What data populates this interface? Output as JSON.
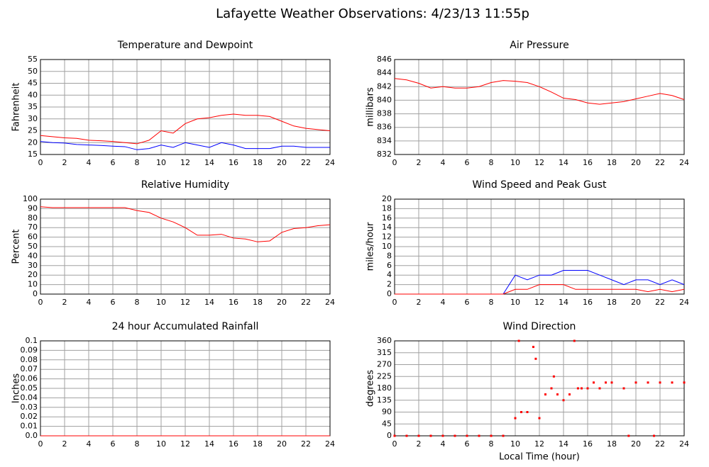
{
  "title": "Lafayette Weather Observations: 4/23/13 11:55p",
  "chart_data": [
    {
      "type": "line",
      "title": "Temperature and Dewpoint",
      "y_label": "Fahrenheit",
      "x": [
        0,
        1,
        2,
        3,
        4,
        5,
        6,
        7,
        8,
        9,
        10,
        11,
        12,
        13,
        14,
        15,
        16,
        17,
        18,
        19,
        20,
        21,
        22,
        23,
        24
      ],
      "series": [
        {
          "color": "#ff0000",
          "values": [
            23,
            22.5,
            22,
            21.8,
            21,
            20.8,
            20.5,
            20,
            19.5,
            21,
            25,
            24,
            28,
            30,
            30.5,
            31.5,
            32,
            31.5,
            31.5,
            31,
            29,
            27,
            26,
            25.5,
            25
          ]
        },
        {
          "color": "#0000ff",
          "values": [
            20.5,
            20,
            19.8,
            19.2,
            19,
            18.8,
            18.5,
            18.3,
            17,
            17.5,
            19,
            18,
            20,
            19,
            18,
            20,
            19,
            17.5,
            17.5,
            17.5,
            18.5,
            18.5,
            18,
            18,
            18
          ]
        }
      ],
      "xlim": [
        0,
        24
      ],
      "xticks": [
        0,
        2,
        4,
        6,
        8,
        10,
        12,
        14,
        16,
        18,
        20,
        22,
        24
      ],
      "ylim": [
        15,
        55
      ],
      "yticks": [
        15,
        20,
        25,
        30,
        35,
        40,
        45,
        50,
        55
      ],
      "grid": true
    },
    {
      "type": "line",
      "title": "Air Pressure",
      "y_label": "millibars",
      "x": [
        0,
        1,
        2,
        3,
        4,
        5,
        6,
        7,
        8,
        9,
        10,
        11,
        12,
        13,
        14,
        15,
        16,
        17,
        18,
        19,
        20,
        21,
        22,
        23,
        24
      ],
      "series": [
        {
          "color": "#ff0000",
          "values": [
            843.2,
            843,
            842.5,
            841.8,
            842,
            841.8,
            841.8,
            842,
            842.6,
            842.9,
            842.8,
            842.6,
            842,
            841.2,
            840.3,
            840.1,
            839.6,
            839.4,
            839.6,
            839.8,
            840.2,
            840.6,
            841,
            840.7,
            840.1
          ]
        }
      ],
      "xlim": [
        0,
        24
      ],
      "xticks": [
        0,
        2,
        4,
        6,
        8,
        10,
        12,
        14,
        16,
        18,
        20,
        22,
        24
      ],
      "ylim": [
        832,
        846
      ],
      "yticks": [
        832,
        834,
        836,
        838,
        840,
        842,
        844,
        846
      ],
      "grid": true
    },
    {
      "type": "line",
      "title": "Relative Humidity",
      "y_label": "Percent",
      "x": [
        0,
        1,
        2,
        3,
        4,
        5,
        6,
        7,
        8,
        9,
        10,
        11,
        12,
        13,
        14,
        15,
        16,
        17,
        18,
        19,
        20,
        21,
        22,
        23,
        24
      ],
      "series": [
        {
          "color": "#ff0000",
          "values": [
            92,
            91,
            91,
            91,
            91,
            91,
            91,
            91,
            88,
            86,
            80,
            76,
            70,
            62,
            62,
            63,
            59,
            58,
            55,
            56,
            65,
            69,
            70,
            72,
            73
          ]
        }
      ],
      "xlim": [
        0,
        24
      ],
      "xticks": [
        0,
        2,
        4,
        6,
        8,
        10,
        12,
        14,
        16,
        18,
        20,
        22,
        24
      ],
      "ylim": [
        0,
        100
      ],
      "yticks": [
        0,
        10,
        20,
        30,
        40,
        50,
        60,
        70,
        80,
        90,
        100
      ],
      "grid": true
    },
    {
      "type": "line",
      "title": "Wind Speed and Peak Gust",
      "y_label": "miles/hour",
      "x": [
        0,
        1,
        2,
        3,
        4,
        5,
        6,
        7,
        8,
        9,
        10,
        11,
        12,
        13,
        14,
        15,
        16,
        17,
        18,
        19,
        20,
        21,
        22,
        23,
        24
      ],
      "series": [
        {
          "color": "#0000ff",
          "values": [
            0,
            0,
            0,
            0,
            0,
            0,
            0,
            0,
            0,
            0,
            4,
            3,
            4,
            4,
            5,
            5,
            5,
            4,
            3,
            2,
            3,
            3,
            2,
            3,
            2
          ]
        },
        {
          "color": "#ff0000",
          "values": [
            0,
            0,
            0,
            0,
            0,
            0,
            0,
            0,
            0,
            0,
            1,
            1,
            2,
            2,
            2,
            1,
            1,
            1,
            1,
            1,
            1,
            0.5,
            1,
            0.5,
            1
          ]
        }
      ],
      "xlim": [
        0,
        24
      ],
      "xticks": [
        0,
        2,
        4,
        6,
        8,
        10,
        12,
        14,
        16,
        18,
        20,
        22,
        24
      ],
      "ylim": [
        0,
        20
      ],
      "yticks": [
        0,
        2,
        4,
        6,
        8,
        10,
        12,
        14,
        16,
        18,
        20
      ],
      "grid": true
    },
    {
      "type": "line",
      "title": "24 hour Accumulated Rainfall",
      "y_label": "Inches",
      "x": [
        0,
        24
      ],
      "series": [
        {
          "color": "#ff0000",
          "values": [
            0,
            0
          ]
        }
      ],
      "xlim": [
        0,
        24
      ],
      "xticks": [
        0,
        2,
        4,
        6,
        8,
        10,
        12,
        14,
        16,
        18,
        20,
        22,
        24
      ],
      "ylim": [
        0,
        0.1
      ],
      "yticks": [
        {
          "value": 0,
          "label": "0.0"
        },
        0.01,
        0.02,
        0.03,
        0.04,
        0.05,
        0.06,
        0.07,
        0.08,
        0.09,
        0.1
      ],
      "grid": true
    },
    {
      "type": "scatter",
      "title": "Wind Direction",
      "y_label": "degrees",
      "x_label": "Local Time (hour)",
      "x": [
        0,
        1,
        2,
        3,
        4,
        5,
        6,
        7,
        8,
        9,
        10,
        10.3,
        10.5,
        11,
        11.5,
        11.7,
        12,
        12.5,
        13,
        13.2,
        13.5,
        14,
        14.5,
        14.9,
        15.2,
        15.5,
        16,
        16.5,
        17,
        17.5,
        18,
        19,
        19.4,
        20,
        21,
        21.5,
        22,
        23,
        24
      ],
      "series": [
        {
          "color": "#ff0000",
          "values": [
            0,
            0,
            0,
            0,
            0,
            0,
            0,
            0,
            0,
            0,
            67,
            360,
            90,
            90,
            337,
            292,
            67,
            157,
            180,
            225,
            157,
            135,
            157,
            360,
            180,
            180,
            180,
            202,
            180,
            202,
            202,
            180,
            0,
            202,
            202,
            0,
            202,
            202,
            202
          ]
        }
      ],
      "xlim": [
        0,
        24
      ],
      "xticks": [
        0,
        2,
        4,
        6,
        8,
        10,
        12,
        14,
        16,
        18,
        20,
        22,
        24
      ],
      "ylim": [
        0,
        360
      ],
      "yticks": [
        0,
        45,
        90,
        135,
        180,
        225,
        270,
        315,
        360
      ],
      "grid": true
    }
  ]
}
